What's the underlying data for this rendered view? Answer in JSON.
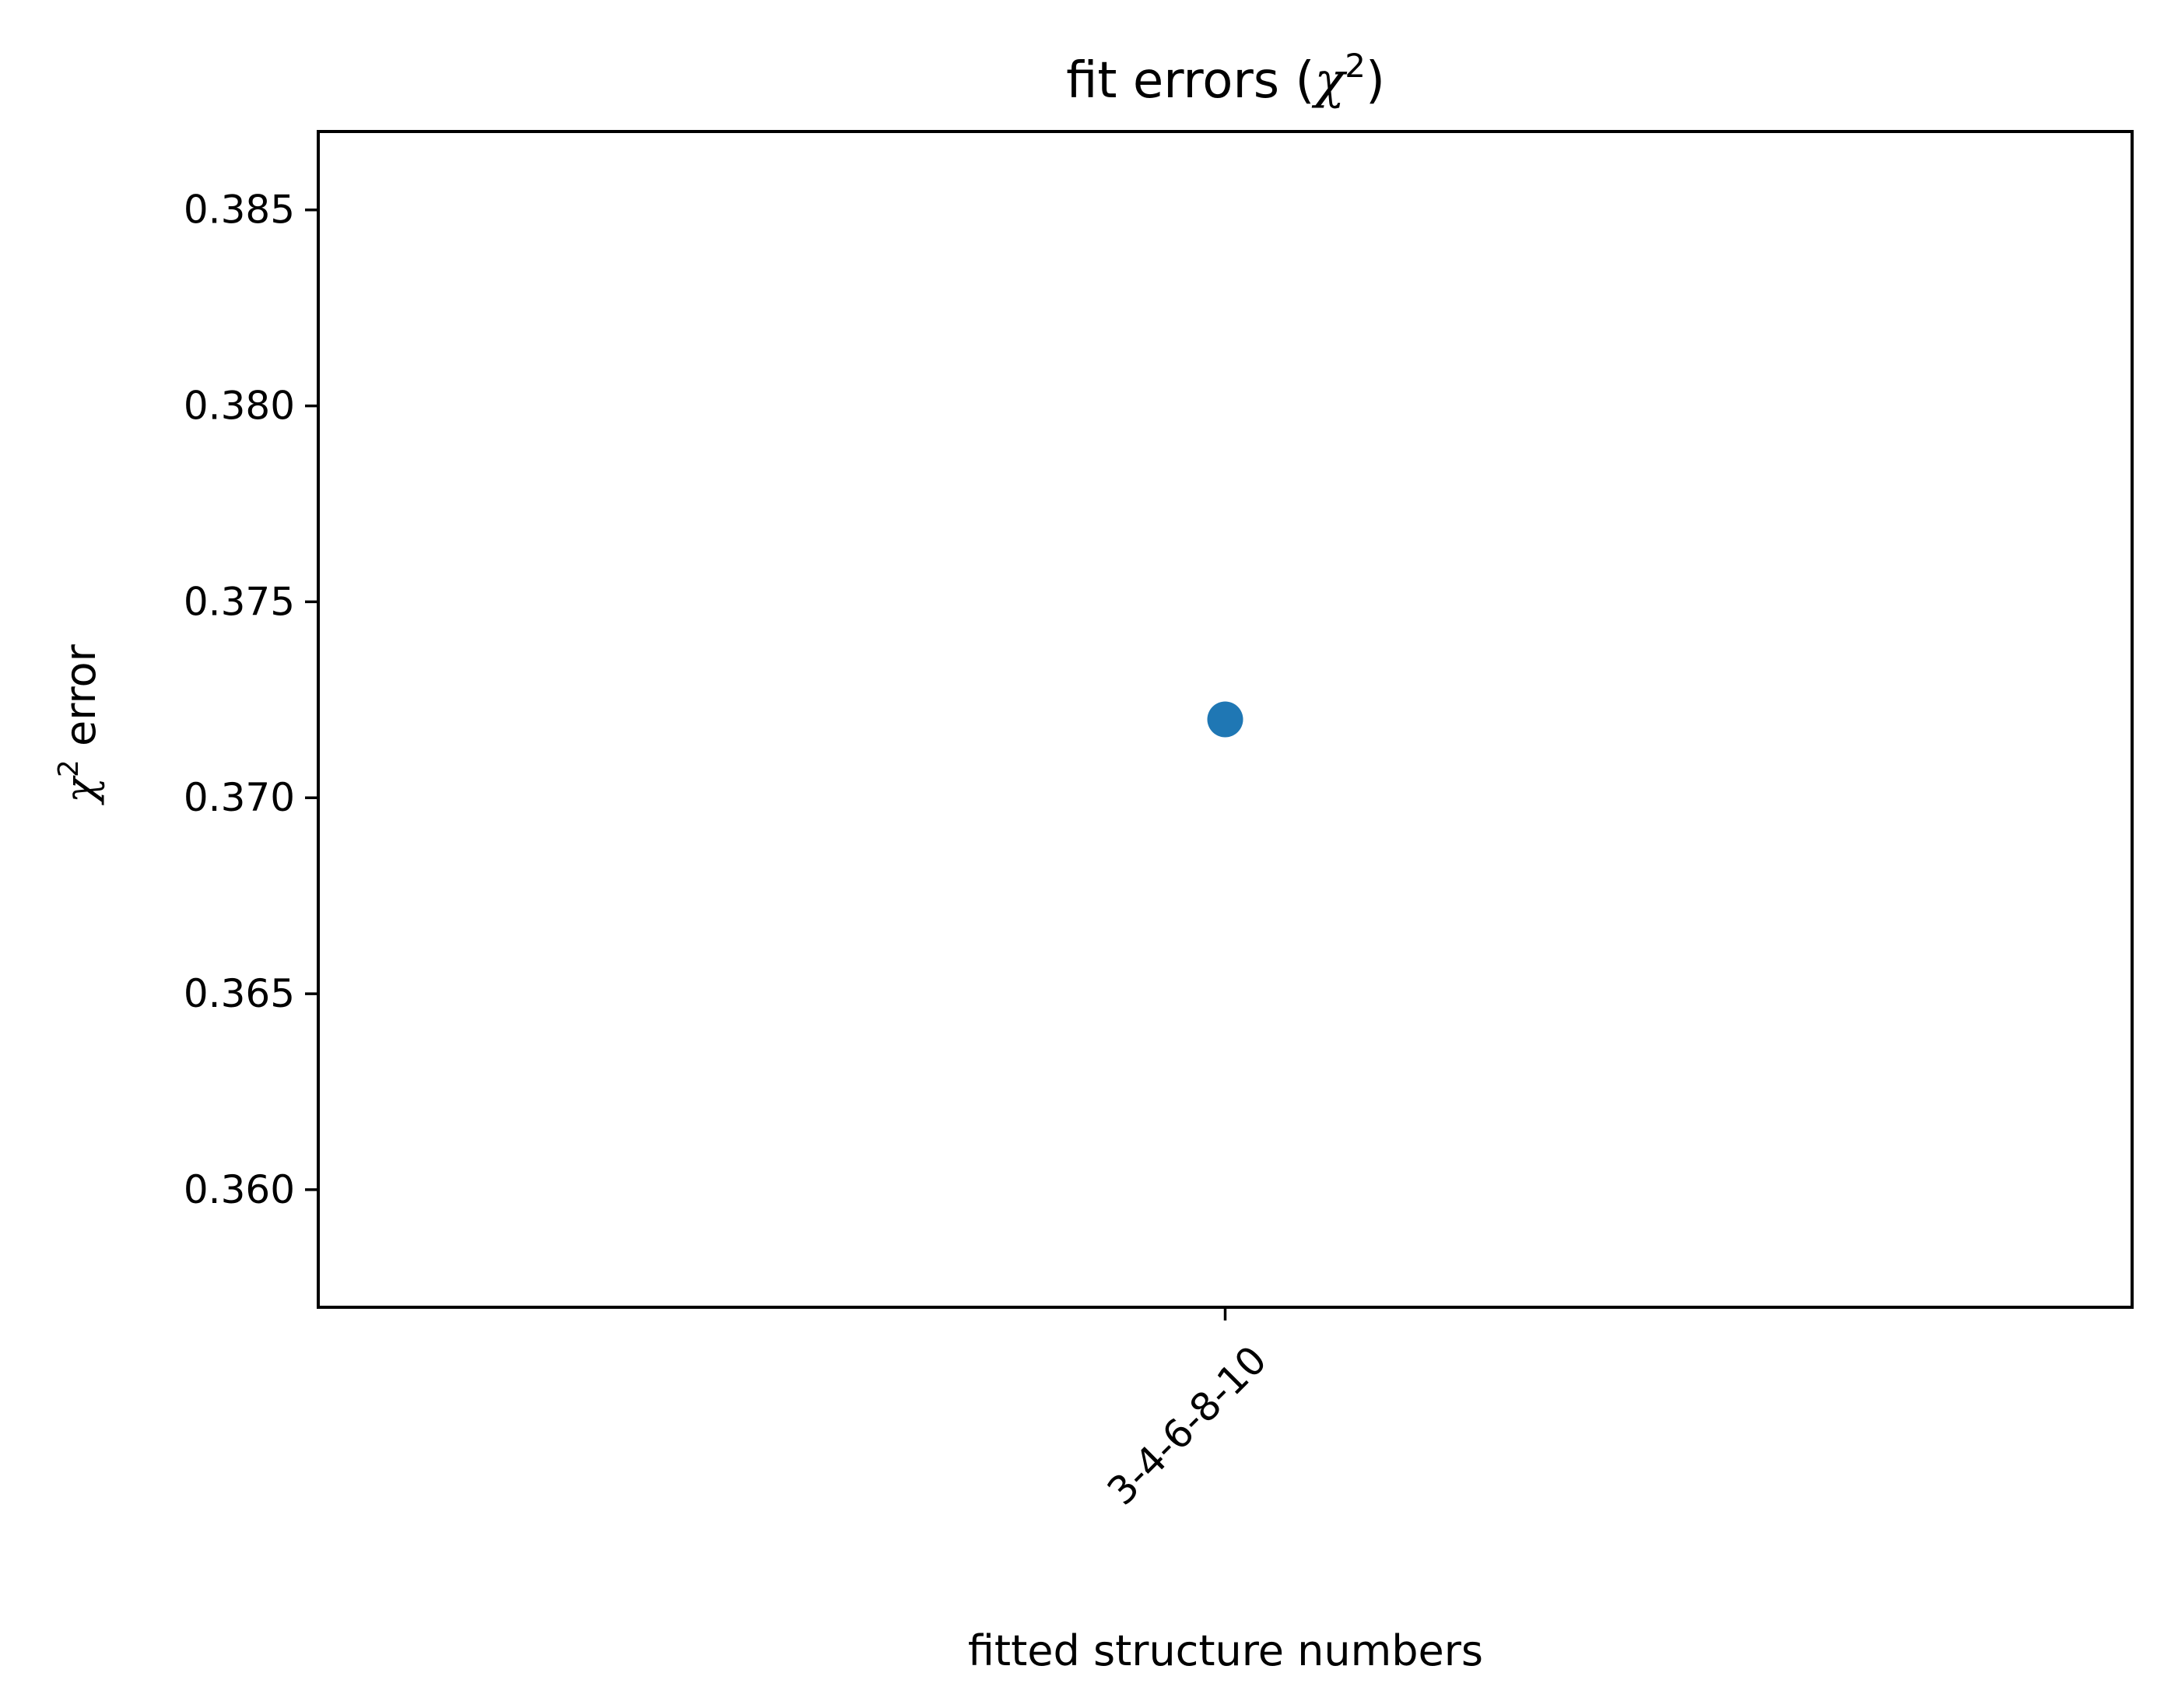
{
  "chart_data": {
    "type": "scatter",
    "title_parts": [
      "fit errors (",
      "χ",
      "2",
      ")"
    ],
    "xlabel": "fitted structure numbers",
    "ylabel_parts": [
      "χ",
      "2",
      " error"
    ],
    "categories": [
      "3-4-6-8-10"
    ],
    "series": [
      {
        "values": [
          0.372
        ],
        "color": "#1f77b4"
      }
    ],
    "x_range": [
      -0.5,
      0.5
    ],
    "ylim": [
      0.357,
      0.387
    ],
    "yticks": [
      0.36,
      0.365,
      0.37,
      0.375,
      0.38,
      0.385
    ],
    "ytick_labels": [
      "0.360",
      "0.365",
      "0.370",
      "0.375",
      "0.380",
      "0.385"
    ],
    "xtick_rotation_deg": 45,
    "grid": false,
    "legend": "none"
  }
}
